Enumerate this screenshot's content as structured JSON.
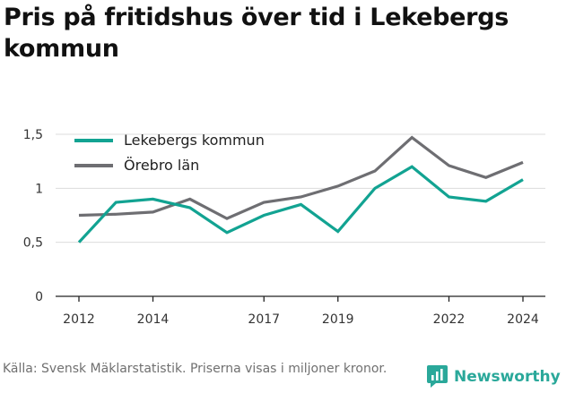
{
  "title": "Pris på fritidshus över tid i Lekebergs kommun",
  "source": "Källa: Svensk Mäklarstatistik. Priserna visas i miljoner kronor.",
  "brand": "Newsworthy",
  "colors": {
    "lekeberg": "#12a392",
    "orebro": "#6e6e72",
    "brand": "#2aa89a"
  },
  "chart_data": {
    "type": "line",
    "title": "Pris på fritidshus över tid i Lekebergs kommun",
    "xlabel": "",
    "ylabel": "",
    "x": [
      2012,
      2013,
      2014,
      2015,
      2016,
      2017,
      2018,
      2019,
      2020,
      2021,
      2022,
      2023,
      2024
    ],
    "x_ticks": [
      2012,
      2014,
      2017,
      2019,
      2022,
      2024
    ],
    "y_ticks": [
      0,
      0.5,
      1,
      1.5
    ],
    "y_tick_labels": [
      "0",
      "0,5",
      "1",
      "1,5"
    ],
    "ylim": [
      0,
      1.5
    ],
    "grid": "horizontal",
    "legend_position": "top-left",
    "series": [
      {
        "name": "Lekebergs kommun",
        "color": "#12a392",
        "values": [
          0.5,
          0.87,
          0.9,
          0.82,
          0.59,
          0.75,
          0.85,
          0.6,
          1.0,
          1.2,
          0.92,
          0.88,
          1.08
        ]
      },
      {
        "name": "Örebro län",
        "color": "#6e6e72",
        "values": [
          0.75,
          0.76,
          0.78,
          0.9,
          0.72,
          0.87,
          0.92,
          1.02,
          1.16,
          1.47,
          1.21,
          1.1,
          1.24
        ]
      }
    ]
  }
}
